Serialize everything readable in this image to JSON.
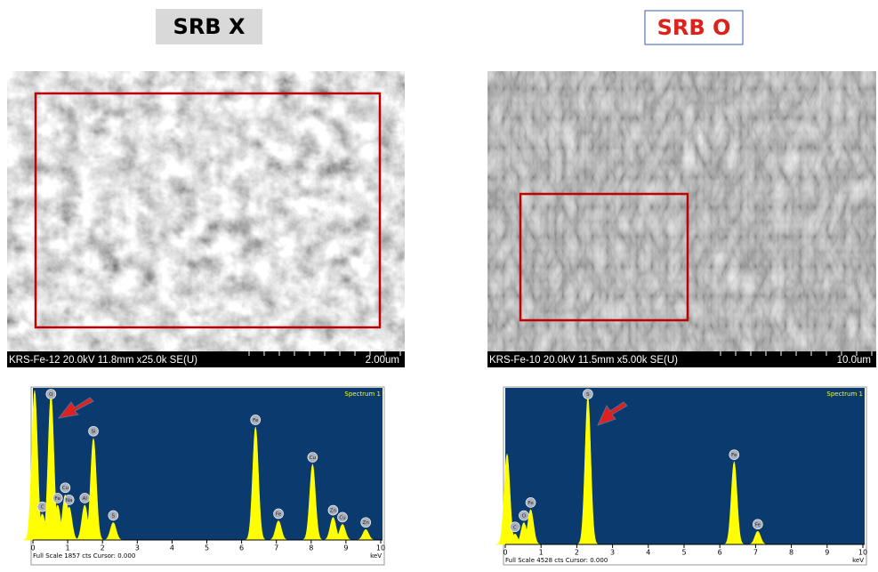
{
  "panels": [
    {
      "label": "SRB X",
      "sem_caption": "KRS-Fe-12 20.0kV 11.8mm x25.0k SE(U)",
      "scale_bar": "2.00um"
    },
    {
      "label": "SRB O",
      "sem_caption": "KRS-Fe-10 20.0kV 11.5mm x5.00k SE(U)",
      "scale_bar": "10.0um"
    }
  ],
  "chart_data": [
    {
      "type": "spectrum",
      "title": "Spectrum 1",
      "footer": "Full Scale 1857 cts Cursor: 0.000",
      "x_label": "keV",
      "x": [
        0.05,
        0.27,
        0.52,
        0.71,
        0.93,
        1.04,
        1.49,
        1.74,
        2.31,
        6.4,
        7.06,
        8.04,
        8.63,
        8.9,
        9.57
      ],
      "values": [
        1857,
        324,
        1803,
        432,
        561,
        410,
        432,
        1263,
        216,
        1404,
        238,
        939,
        281,
        194,
        130
      ],
      "labels": [
        null,
        "C",
        "O",
        "Fe",
        "Cu",
        "Na",
        "Al",
        "Si",
        "S",
        "Fe",
        "Fe",
        "Cu",
        "Zn",
        "Cu",
        "Zn"
      ],
      "color": "#ffff00",
      "xlim": [
        0,
        10
      ],
      "ylim": [
        0,
        1857
      ],
      "xticks": [
        0,
        1,
        2,
        3,
        4,
        5,
        6,
        7,
        8,
        9,
        10
      ]
    },
    {
      "type": "spectrum",
      "title": "Spectrum 1",
      "footer": "Full Scale 4528 cts Cursor: 0.000",
      "x_label": "keV",
      "x": [
        0.05,
        0.27,
        0.52,
        0.71,
        2.31,
        6.4,
        7.06
      ],
      "values": [
        2660,
        307,
        640,
        1023,
        4349,
        2430,
        384
      ],
      "labels": [
        null,
        "C",
        "O",
        "Fe",
        "S",
        "Fe",
        "Fe"
      ],
      "color": "#ffff00",
      "xlim": [
        0,
        10
      ],
      "ylim": [
        0,
        4528
      ],
      "xticks": [
        0,
        1,
        2,
        3,
        4,
        5,
        6,
        7,
        8,
        9,
        10
      ]
    }
  ]
}
